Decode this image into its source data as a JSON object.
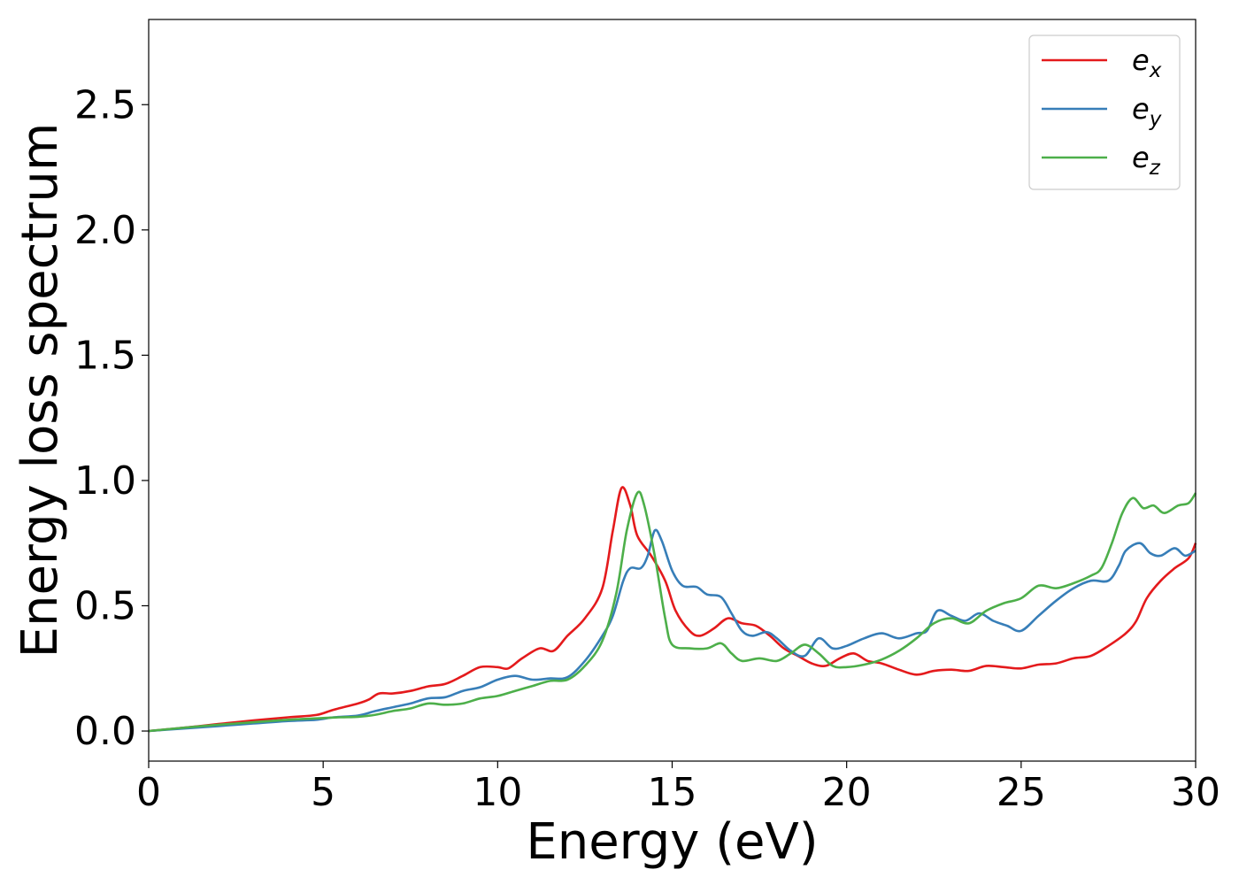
{
  "chart_data": {
    "type": "line",
    "title": "",
    "xlabel": "Energy (eV)",
    "ylabel": "Energy loss spectrum",
    "xlim": [
      0,
      30
    ],
    "ylim": [
      -0.12,
      2.84
    ],
    "xticks": [
      "0",
      "5",
      "10",
      "15",
      "20",
      "25",
      "30"
    ],
    "yticks": [
      "0.0",
      "0.5",
      "1.0",
      "1.5",
      "2.0",
      "2.5"
    ],
    "grid": false,
    "legend_position": "top-right",
    "legend": [
      {
        "base": "e",
        "sub": "x",
        "color": "#e41a1c"
      },
      {
        "base": "e",
        "sub": "y",
        "color": "#377eb8"
      },
      {
        "base": "e",
        "sub": "z",
        "color": "#4daf4a"
      }
    ],
    "series": [
      {
        "key": "ex",
        "color": "#e41a1c",
        "points": [
          [
            0,
            0.0
          ],
          [
            1,
            0.013
          ],
          [
            2,
            0.028
          ],
          [
            3,
            0.042
          ],
          [
            4,
            0.055
          ],
          [
            4.8,
            0.064
          ],
          [
            5.3,
            0.085
          ],
          [
            6,
            0.11
          ],
          [
            6.3,
            0.125
          ],
          [
            6.6,
            0.15
          ],
          [
            7,
            0.15
          ],
          [
            7.5,
            0.16
          ],
          [
            8,
            0.178
          ],
          [
            8.5,
            0.188
          ],
          [
            9,
            0.22
          ],
          [
            9.5,
            0.255
          ],
          [
            10,
            0.255
          ],
          [
            10.3,
            0.25
          ],
          [
            10.7,
            0.29
          ],
          [
            11.2,
            0.33
          ],
          [
            11.6,
            0.32
          ],
          [
            12,
            0.38
          ],
          [
            12.5,
            0.45
          ],
          [
            13,
            0.57
          ],
          [
            13.3,
            0.8
          ],
          [
            13.55,
            0.97
          ],
          [
            13.8,
            0.9
          ],
          [
            14,
            0.78
          ],
          [
            14.4,
            0.7
          ],
          [
            14.8,
            0.6
          ],
          [
            15.1,
            0.48
          ],
          [
            15.5,
            0.4
          ],
          [
            15.8,
            0.38
          ],
          [
            16.2,
            0.41
          ],
          [
            16.6,
            0.45
          ],
          [
            17,
            0.43
          ],
          [
            17.4,
            0.42
          ],
          [
            17.8,
            0.38
          ],
          [
            18.2,
            0.33
          ],
          [
            18.6,
            0.3
          ],
          [
            19,
            0.27
          ],
          [
            19.4,
            0.26
          ],
          [
            19.8,
            0.29
          ],
          [
            20.2,
            0.31
          ],
          [
            20.6,
            0.28
          ],
          [
            21,
            0.27
          ],
          [
            21.5,
            0.245
          ],
          [
            22,
            0.225
          ],
          [
            22.5,
            0.24
          ],
          [
            23,
            0.245
          ],
          [
            23.5,
            0.24
          ],
          [
            24,
            0.26
          ],
          [
            24.5,
            0.255
          ],
          [
            25,
            0.25
          ],
          [
            25.5,
            0.265
          ],
          [
            26,
            0.27
          ],
          [
            26.5,
            0.29
          ],
          [
            27,
            0.3
          ],
          [
            27.5,
            0.34
          ],
          [
            28,
            0.39
          ],
          [
            28.3,
            0.44
          ],
          [
            28.6,
            0.53
          ],
          [
            29,
            0.6
          ],
          [
            29.4,
            0.65
          ],
          [
            29.8,
            0.69
          ],
          [
            30,
            0.75
          ]
        ]
      },
      {
        "key": "ey",
        "color": "#377eb8",
        "points": [
          [
            0,
            0.0
          ],
          [
            1,
            0.01
          ],
          [
            2,
            0.02
          ],
          [
            3,
            0.03
          ],
          [
            4,
            0.04
          ],
          [
            4.8,
            0.045
          ],
          [
            5.3,
            0.055
          ],
          [
            6,
            0.062
          ],
          [
            6.5,
            0.08
          ],
          [
            7,
            0.095
          ],
          [
            7.5,
            0.11
          ],
          [
            8,
            0.13
          ],
          [
            8.5,
            0.135
          ],
          [
            9,
            0.16
          ],
          [
            9.5,
            0.175
          ],
          [
            10,
            0.205
          ],
          [
            10.5,
            0.22
          ],
          [
            11,
            0.205
          ],
          [
            11.5,
            0.21
          ],
          [
            12,
            0.215
          ],
          [
            12.5,
            0.28
          ],
          [
            13,
            0.38
          ],
          [
            13.3,
            0.46
          ],
          [
            13.6,
            0.6
          ],
          [
            13.8,
            0.65
          ],
          [
            14.1,
            0.65
          ],
          [
            14.3,
            0.7
          ],
          [
            14.5,
            0.8
          ],
          [
            14.7,
            0.76
          ],
          [
            15,
            0.64
          ],
          [
            15.3,
            0.58
          ],
          [
            15.7,
            0.575
          ],
          [
            16,
            0.545
          ],
          [
            16.4,
            0.535
          ],
          [
            16.7,
            0.47
          ],
          [
            17,
            0.4
          ],
          [
            17.3,
            0.38
          ],
          [
            17.7,
            0.395
          ],
          [
            18,
            0.37
          ],
          [
            18.4,
            0.32
          ],
          [
            18.8,
            0.3
          ],
          [
            19.2,
            0.37
          ],
          [
            19.6,
            0.33
          ],
          [
            20,
            0.34
          ],
          [
            20.5,
            0.37
          ],
          [
            21,
            0.39
          ],
          [
            21.5,
            0.37
          ],
          [
            22,
            0.39
          ],
          [
            22.3,
            0.4
          ],
          [
            22.6,
            0.48
          ],
          [
            23,
            0.46
          ],
          [
            23.4,
            0.44
          ],
          [
            23.8,
            0.47
          ],
          [
            24.2,
            0.44
          ],
          [
            24.6,
            0.42
          ],
          [
            25,
            0.4
          ],
          [
            25.5,
            0.46
          ],
          [
            26,
            0.52
          ],
          [
            26.5,
            0.57
          ],
          [
            27,
            0.6
          ],
          [
            27.5,
            0.6
          ],
          [
            27.8,
            0.66
          ],
          [
            28,
            0.72
          ],
          [
            28.4,
            0.75
          ],
          [
            28.7,
            0.71
          ],
          [
            29,
            0.7
          ],
          [
            29.4,
            0.73
          ],
          [
            29.7,
            0.7
          ],
          [
            30,
            0.72
          ]
        ]
      },
      {
        "key": "ez",
        "color": "#4daf4a",
        "points": [
          [
            0,
            0.0
          ],
          [
            1,
            0.013
          ],
          [
            2,
            0.025
          ],
          [
            3,
            0.035
          ],
          [
            4,
            0.045
          ],
          [
            5,
            0.052
          ],
          [
            5.5,
            0.055
          ],
          [
            6,
            0.057
          ],
          [
            6.5,
            0.065
          ],
          [
            7,
            0.08
          ],
          [
            7.5,
            0.09
          ],
          [
            8,
            0.11
          ],
          [
            8.5,
            0.105
          ],
          [
            9,
            0.11
          ],
          [
            9.5,
            0.13
          ],
          [
            10,
            0.14
          ],
          [
            10.5,
            0.16
          ],
          [
            11,
            0.18
          ],
          [
            11.5,
            0.2
          ],
          [
            12,
            0.205
          ],
          [
            12.5,
            0.26
          ],
          [
            13,
            0.36
          ],
          [
            13.4,
            0.55
          ],
          [
            13.7,
            0.8
          ],
          [
            14,
            0.95
          ],
          [
            14.2,
            0.9
          ],
          [
            14.5,
            0.7
          ],
          [
            14.8,
            0.45
          ],
          [
            15,
            0.345
          ],
          [
            15.5,
            0.33
          ],
          [
            16,
            0.33
          ],
          [
            16.4,
            0.35
          ],
          [
            16.7,
            0.31
          ],
          [
            17,
            0.28
          ],
          [
            17.5,
            0.29
          ],
          [
            18,
            0.28
          ],
          [
            18.4,
            0.31
          ],
          [
            18.8,
            0.345
          ],
          [
            19.2,
            0.31
          ],
          [
            19.6,
            0.26
          ],
          [
            20,
            0.255
          ],
          [
            20.5,
            0.265
          ],
          [
            21,
            0.285
          ],
          [
            21.5,
            0.32
          ],
          [
            22,
            0.37
          ],
          [
            22.5,
            0.43
          ],
          [
            23,
            0.45
          ],
          [
            23.5,
            0.43
          ],
          [
            24,
            0.48
          ],
          [
            24.5,
            0.51
          ],
          [
            25,
            0.53
          ],
          [
            25.5,
            0.58
          ],
          [
            26,
            0.57
          ],
          [
            26.5,
            0.59
          ],
          [
            27,
            0.62
          ],
          [
            27.3,
            0.65
          ],
          [
            27.6,
            0.75
          ],
          [
            27.9,
            0.87
          ],
          [
            28.2,
            0.93
          ],
          [
            28.5,
            0.89
          ],
          [
            28.8,
            0.9
          ],
          [
            29.1,
            0.87
          ],
          [
            29.5,
            0.9
          ],
          [
            29.8,
            0.91
          ],
          [
            30,
            0.95
          ]
        ]
      }
    ]
  }
}
